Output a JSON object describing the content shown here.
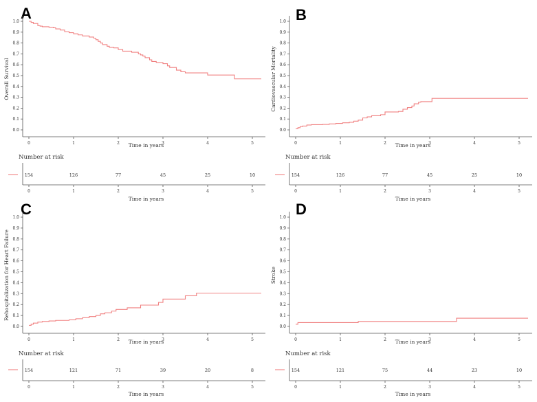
{
  "chart_data": [
    {
      "panel": "A",
      "type": "line",
      "ylabel": "Overall Survival",
      "xlabel": "Time in years",
      "xlim": [
        0,
        5.2
      ],
      "ylim": [
        0,
        1
      ],
      "x_ticks": [
        "0",
        "1",
        "2",
        "3",
        "4",
        "5"
      ],
      "y_ticks": [
        "0.0",
        "0.1",
        "0.2",
        "0.3",
        "0.4",
        "0.5",
        "0.6",
        "0.7",
        "0.8",
        "0.9",
        "1.0"
      ],
      "color": "#f08080",
      "series": [
        {
          "name": "Overall Survival",
          "x": [
            0,
            0.05,
            0.1,
            0.2,
            0.25,
            0.3,
            0.45,
            0.55,
            0.6,
            0.7,
            0.8,
            0.9,
            1.0,
            1.1,
            1.2,
            1.35,
            1.45,
            1.5,
            1.55,
            1.6,
            1.65,
            1.75,
            1.8,
            1.9,
            2.0,
            2.1,
            2.3,
            2.45,
            2.5,
            2.55,
            2.6,
            2.7,
            2.75,
            2.85,
            3.0,
            3.1,
            3.15,
            3.3,
            3.4,
            3.5,
            4.0,
            4.6,
            5.2
          ],
          "y": [
            1.0,
            0.99,
            0.98,
            0.96,
            0.955,
            0.95,
            0.945,
            0.94,
            0.93,
            0.92,
            0.905,
            0.895,
            0.885,
            0.875,
            0.865,
            0.855,
            0.845,
            0.83,
            0.815,
            0.8,
            0.785,
            0.77,
            0.76,
            0.755,
            0.74,
            0.725,
            0.715,
            0.7,
            0.69,
            0.68,
            0.665,
            0.645,
            0.63,
            0.62,
            0.61,
            0.59,
            0.575,
            0.55,
            0.535,
            0.525,
            0.505,
            0.47,
            0.47
          ]
        }
      ],
      "risk_table": {
        "title": "Number at risk",
        "x": [
          0,
          1,
          2,
          3,
          4,
          5
        ],
        "counts": [
          "154",
          "126",
          "77",
          "45",
          "25",
          "10"
        ]
      }
    },
    {
      "panel": "B",
      "type": "line",
      "ylabel": "Cardiovascular Mortality",
      "xlabel": "Time in years",
      "xlim": [
        0,
        5.2
      ],
      "ylim": [
        0,
        1
      ],
      "x_ticks": [
        "0",
        "1",
        "2",
        "3",
        "4",
        "5"
      ],
      "y_ticks": [
        "0.0",
        "0.1",
        "0.2",
        "0.3",
        "0.4",
        "0.5",
        "0.6",
        "0.7",
        "0.8",
        "0.9",
        "1.0"
      ],
      "color": "#f08080",
      "series": [
        {
          "name": "Cardiovascular Mortality",
          "x": [
            0,
            0.05,
            0.1,
            0.15,
            0.25,
            0.35,
            0.6,
            0.75,
            0.9,
            1.05,
            1.2,
            1.3,
            1.4,
            1.5,
            1.6,
            1.7,
            1.9,
            2.0,
            2.3,
            2.4,
            2.5,
            2.6,
            2.65,
            2.75,
            2.8,
            3.05,
            5.2
          ],
          "y": [
            0.01,
            0.02,
            0.03,
            0.035,
            0.045,
            0.048,
            0.05,
            0.055,
            0.06,
            0.065,
            0.07,
            0.08,
            0.09,
            0.11,
            0.12,
            0.13,
            0.14,
            0.165,
            0.17,
            0.19,
            0.205,
            0.22,
            0.24,
            0.255,
            0.26,
            0.29,
            0.29
          ]
        }
      ],
      "risk_table": {
        "title": "Number at risk",
        "x": [
          0,
          1,
          2,
          3,
          4,
          5
        ],
        "counts": [
          "154",
          "126",
          "77",
          "45",
          "25",
          "10"
        ]
      }
    },
    {
      "panel": "C",
      "type": "line",
      "ylabel": "Rehospitalization for Heart Failure",
      "xlabel": "Time in years",
      "xlim": [
        0,
        5.2
      ],
      "ylim": [
        0,
        1
      ],
      "x_ticks": [
        "0",
        "1",
        "2",
        "3",
        "4",
        "5"
      ],
      "y_ticks": [
        "0.0",
        "0.1",
        "0.2",
        "0.3",
        "0.4",
        "0.5",
        "0.6",
        "0.7",
        "0.8",
        "0.9",
        "1.0"
      ],
      "color": "#f08080",
      "series": [
        {
          "name": "Rehospitalization for Heart Failure",
          "x": [
            0,
            0.05,
            0.1,
            0.2,
            0.3,
            0.45,
            0.6,
            0.9,
            1.05,
            1.2,
            1.35,
            1.5,
            1.6,
            1.7,
            1.85,
            1.95,
            2.2,
            2.5,
            2.9,
            3.0,
            3.5,
            3.75,
            5.2
          ],
          "y": [
            0.01,
            0.02,
            0.03,
            0.04,
            0.045,
            0.05,
            0.055,
            0.06,
            0.07,
            0.08,
            0.09,
            0.1,
            0.115,
            0.125,
            0.14,
            0.155,
            0.17,
            0.195,
            0.22,
            0.25,
            0.28,
            0.305,
            0.305
          ]
        }
      ],
      "risk_table": {
        "title": "Number at risk",
        "x": [
          0,
          1,
          2,
          3,
          4,
          5
        ],
        "counts": [
          "154",
          "121",
          "71",
          "39",
          "20",
          "8"
        ]
      }
    },
    {
      "panel": "D",
      "type": "line",
      "ylabel": "Stroke",
      "xlabel": "Time in years",
      "xlim": [
        0,
        5.2
      ],
      "ylim": [
        0,
        1
      ],
      "x_ticks": [
        "0",
        "1",
        "2",
        "3",
        "4",
        "5"
      ],
      "y_ticks": [
        "0.0",
        "0.1",
        "0.2",
        "0.3",
        "0.4",
        "0.5",
        "0.6",
        "0.7",
        "0.8",
        "0.9",
        "1.0"
      ],
      "color": "#f08080",
      "series": [
        {
          "name": "Stroke",
          "x": [
            0,
            0.05,
            1.4,
            3.6,
            5.2
          ],
          "y": [
            0.02,
            0.035,
            0.045,
            0.075,
            0.075
          ]
        }
      ],
      "risk_table": {
        "title": "Number at risk",
        "x": [
          0,
          1,
          2,
          3,
          4,
          5
        ],
        "counts": [
          "154",
          "121",
          "75",
          "44",
          "23",
          "10"
        ]
      }
    }
  ]
}
